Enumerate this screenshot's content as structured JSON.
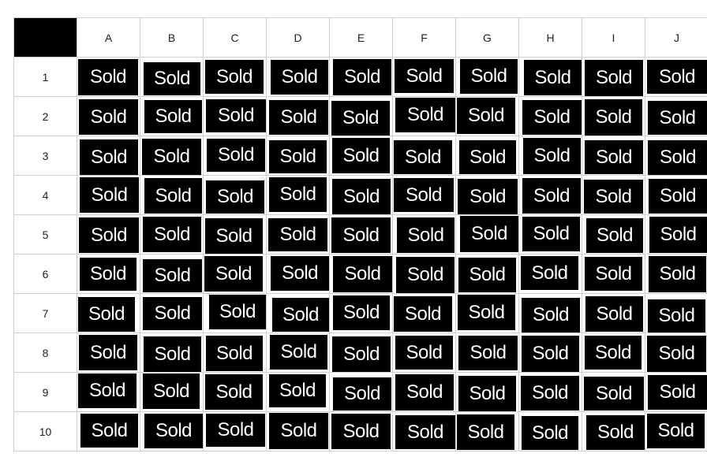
{
  "columns": [
    "A",
    "B",
    "C",
    "D",
    "E",
    "F",
    "G",
    "H",
    "I",
    "J"
  ],
  "rows": [
    "1",
    "2",
    "3",
    "4",
    "5",
    "6",
    "7",
    "8",
    "9",
    "10"
  ],
  "tile_label": "Sold",
  "colors": {
    "tile_background": "#000000",
    "tile_text": "#ffffff",
    "corner": "#000000",
    "grid_line": "#d0d0d0"
  }
}
